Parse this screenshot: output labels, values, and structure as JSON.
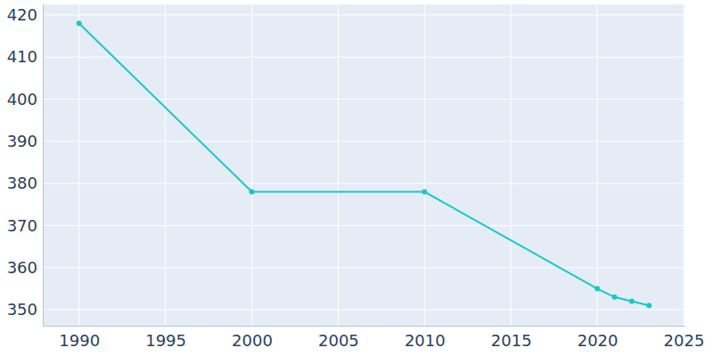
{
  "chart_data": {
    "type": "line",
    "x": [
      1990,
      2000,
      2010,
      2020,
      2021,
      2022,
      2023
    ],
    "values": [
      418,
      378,
      378,
      355,
      353,
      352,
      351
    ],
    "color": "#17c9c9",
    "marker": "circle",
    "xlim": [
      1987.9,
      2025.05
    ],
    "xticks": [
      1990,
      1995,
      2000,
      2005,
      2010,
      2015,
      2020,
      2025
    ],
    "ylim": [
      346.2,
      422.5
    ],
    "yticks": [
      350,
      360,
      370,
      380,
      390,
      400,
      410,
      420
    ],
    "grid": true
  }
}
